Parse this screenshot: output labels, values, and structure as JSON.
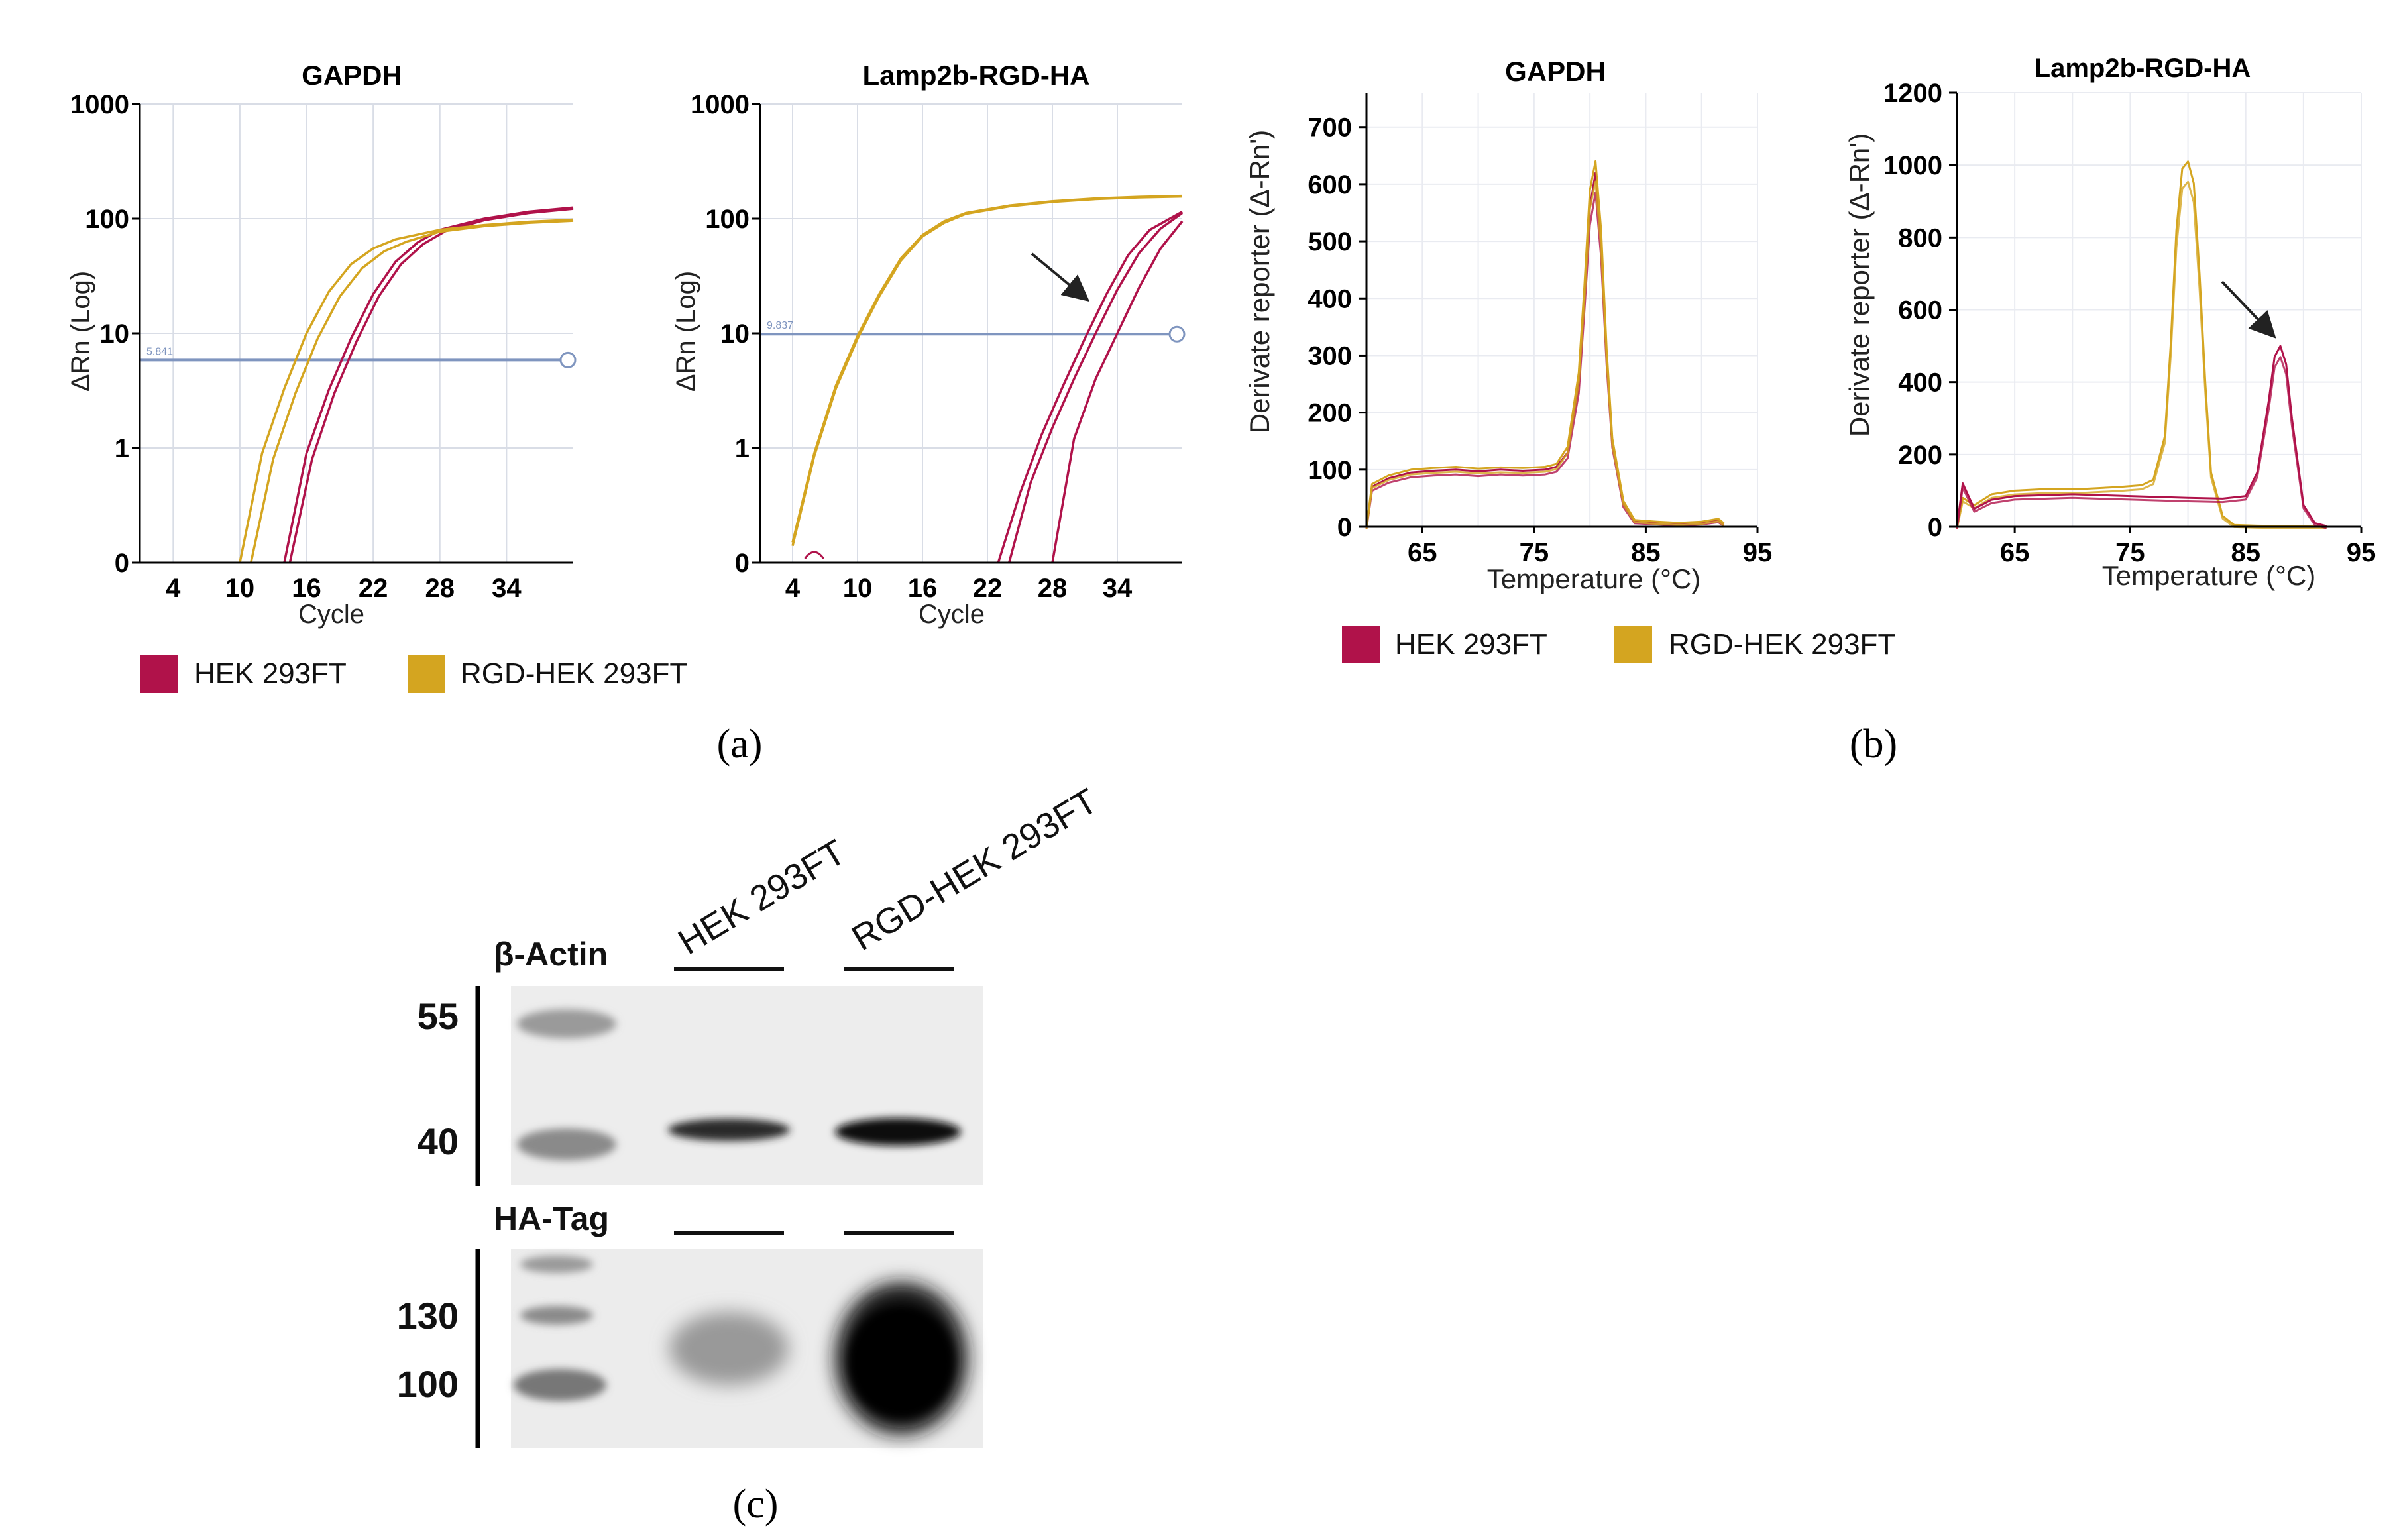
{
  "colors": {
    "hek": "#b0124a",
    "rgd": "#d4a520",
    "threshold": "#7f95bf",
    "grid": "#d9dde6"
  },
  "legend": {
    "hek": "HEK 293FT",
    "rgd": "RGD-HEK 293FT"
  },
  "panel_labels": {
    "a": "(a)",
    "b": "(b)",
    "c": "(c)"
  },
  "chart_data": [
    {
      "id": "a1",
      "type": "line",
      "title": "GAPDH",
      "xlabel": "Cycle",
      "ylabel": "ΔRn (Log)",
      "xticks": [
        4,
        10,
        16,
        22,
        28,
        34
      ],
      "yticks": [
        "0",
        "1",
        "10",
        "100",
        "1000"
      ],
      "xlim": [
        1,
        40
      ],
      "yscale": "log",
      "threshold": {
        "value": 5.841,
        "label": "5.841"
      },
      "series": [
        {
          "name": "HEK 293FT",
          "x": [
            14,
            16,
            18,
            20,
            22,
            24,
            26,
            28,
            32,
            36,
            40
          ],
          "y": [
            0.1,
            0.9,
            3.2,
            9,
            22,
            42,
            62,
            80,
            100,
            115,
            125
          ]
        },
        {
          "name": "HEK 293FT",
          "x": [
            14.5,
            16.5,
            18.5,
            20.5,
            22.5,
            24.5,
            26.5,
            28.5,
            32,
            36,
            40
          ],
          "y": [
            0.1,
            0.8,
            3,
            8.5,
            21,
            40,
            60,
            78,
            97,
            112,
            122
          ]
        },
        {
          "name": "RGD-HEK 293FT",
          "x": [
            10,
            12,
            14,
            16,
            18,
            20,
            22,
            24,
            28,
            32,
            36,
            40
          ],
          "y": [
            0.1,
            0.9,
            3.3,
            10,
            23,
            40,
            55,
            66,
            80,
            88,
            94,
            98
          ]
        },
        {
          "name": "RGD-HEK 293FT",
          "x": [
            11,
            13,
            15,
            17,
            19,
            21,
            23,
            25,
            28,
            32,
            36,
            40
          ],
          "y": [
            0.1,
            0.8,
            3,
            9,
            21,
            37,
            52,
            63,
            77,
            86,
            92,
            96
          ]
        }
      ]
    },
    {
      "id": "a2",
      "type": "line",
      "title": "Lamp2b-RGD-HA",
      "xlabel": "Cycle",
      "ylabel": "ΔRn (Log)",
      "xticks": [
        4,
        10,
        16,
        22,
        28,
        34
      ],
      "yticks": [
        "0",
        "1",
        "10",
        "100",
        "1000"
      ],
      "xlim": [
        1,
        40
      ],
      "yscale": "log",
      "threshold": {
        "value": 9.837,
        "label": "9.837"
      },
      "series": [
        {
          "name": "RGD-HEK 293FT",
          "x": [
            4,
            6,
            8,
            10,
            12,
            14,
            16,
            18,
            20,
            24,
            28,
            32,
            36,
            40
          ],
          "y": [
            0.15,
            0.9,
            3.5,
            9.5,
            22,
            45,
            72,
            95,
            112,
            130,
            142,
            150,
            155,
            158
          ]
        },
        {
          "name": "RGD-HEK 293FT",
          "x": [
            4,
            6,
            8,
            10,
            12,
            14,
            16,
            18,
            20,
            24,
            28,
            32,
            36,
            40
          ],
          "y": [
            0.14,
            0.85,
            3.3,
            9,
            21,
            43,
            70,
            92,
            110,
            128,
            140,
            148,
            153,
            156
          ]
        },
        {
          "name": "HEK 293FT",
          "x": [
            23,
            25,
            27,
            29,
            31,
            33,
            35,
            37,
            40
          ],
          "y": [
            0.1,
            0.4,
            1.3,
            3.5,
            9,
            22,
            48,
            80,
            115
          ]
        },
        {
          "name": "HEK 293FT",
          "x": [
            24,
            26,
            28,
            30,
            32,
            34,
            36,
            38,
            40
          ],
          "y": [
            0.1,
            0.5,
            1.5,
            4,
            10,
            24,
            50,
            82,
            112
          ]
        },
        {
          "name": "HEK 293FT",
          "x": [
            28,
            30,
            32,
            34,
            36,
            38,
            40
          ],
          "y": [
            0.1,
            1.2,
            4,
            10,
            25,
            55,
            95
          ]
        }
      ],
      "annotations": [
        "arrow pointing to late-amplifying HEK 293FT curves"
      ]
    },
    {
      "id": "b1",
      "type": "line",
      "title": "GAPDH",
      "xlabel": "Temperature (°C)",
      "ylabel": "Derivate reporter (Δ-Rn')",
      "xticks": [
        65,
        75,
        85,
        95
      ],
      "yticks": [
        0,
        100,
        200,
        300,
        400,
        500,
        600,
        700
      ],
      "xlim": [
        60,
        95
      ],
      "ylim": [
        0,
        760
      ],
      "series": [
        {
          "name": "HEK 293FT",
          "x": [
            60,
            60.5,
            62,
            64,
            66,
            68,
            70,
            72,
            74,
            76,
            77,
            78,
            79,
            79.5,
            80,
            80.5,
            81,
            81.5,
            82,
            83,
            84,
            86,
            88,
            90,
            91.5,
            92
          ],
          "y": [
            0,
            70,
            85,
            95,
            98,
            100,
            97,
            100,
            98,
            100,
            105,
            130,
            250,
            400,
            560,
            620,
            500,
            300,
            150,
            40,
            10,
            8,
            6,
            8,
            12,
            5
          ]
        },
        {
          "name": "RGD-HEK 293FT",
          "x": [
            60,
            60.5,
            62,
            64,
            66,
            68,
            70,
            72,
            74,
            76,
            77,
            78,
            79,
            79.5,
            80,
            80.5,
            81,
            81.5,
            82,
            83,
            84,
            86,
            88,
            90,
            91.5,
            92
          ],
          "y": [
            0,
            75,
            90,
            100,
            103,
            105,
            102,
            104,
            103,
            105,
            110,
            140,
            270,
            420,
            590,
            640,
            520,
            310,
            155,
            45,
            12,
            9,
            7,
            9,
            14,
            6
          ]
        }
      ]
    },
    {
      "id": "b2",
      "type": "line",
      "title": "Lamp2b-RGD-HA",
      "xlabel": "Temperature (°C)",
      "ylabel": "Derivate reporter (Δ-Rn')",
      "xticks": [
        65,
        75,
        85,
        95
      ],
      "yticks": [
        0,
        200,
        400,
        600,
        800,
        1000,
        1200
      ],
      "xlim": [
        60,
        95
      ],
      "ylim": [
        0,
        1200
      ],
      "series": [
        {
          "name": "RGD-HEK 293FT",
          "x": [
            60,
            60.5,
            61.5,
            63,
            65,
            68,
            71,
            74,
            76,
            77,
            78,
            78.5,
            79,
            79.5,
            80,
            80.5,
            81,
            81.5,
            82,
            83,
            84,
            86,
            88,
            90,
            92
          ],
          "y": [
            0,
            80,
            60,
            90,
            100,
            105,
            105,
            110,
            115,
            130,
            250,
            500,
            820,
            990,
            1010,
            950,
            700,
            400,
            150,
            30,
            5,
            3,
            2,
            2,
            2
          ]
        },
        {
          "name": "HEK 293FT",
          "x": [
            60,
            60.5,
            61.5,
            63,
            65,
            70,
            75,
            80,
            83,
            85,
            86,
            87,
            87.5,
            88,
            88.5,
            89,
            90,
            91,
            92
          ],
          "y": [
            0,
            120,
            50,
            75,
            85,
            90,
            85,
            80,
            78,
            85,
            150,
            350,
            470,
            500,
            450,
            300,
            60,
            10,
            2
          ]
        }
      ],
      "annotations": [
        "arrow pointing to HEK 293FT peak near 88 °C"
      ]
    }
  ],
  "blot": {
    "lanes": [
      "HEK 293FT",
      "RGD-HEK 293FT"
    ],
    "top": {
      "label": "β-Actin",
      "markers": [
        "55",
        "40"
      ]
    },
    "bottom": {
      "label": "HA-Tag",
      "markers": [
        "130",
        "100"
      ]
    }
  }
}
